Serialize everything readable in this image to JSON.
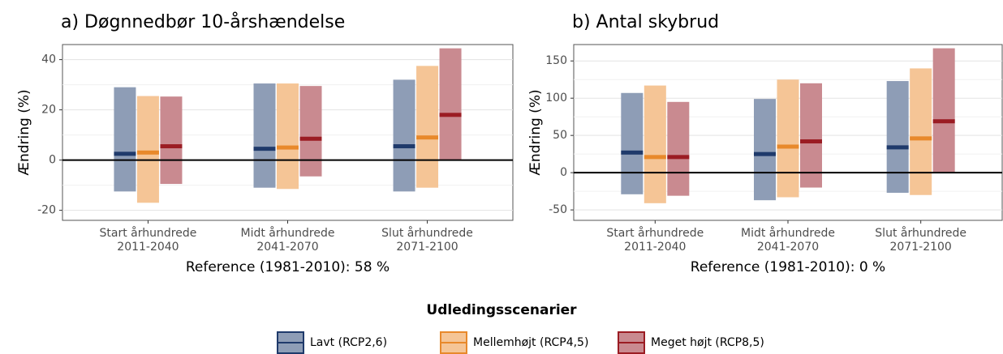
{
  "chart_data": [
    {
      "type": "range",
      "title": "a) Døgnnedbør 10-årshændelse",
      "y_label": "Ændring (%)",
      "x_label": "Reference (1981-2010): 58 %",
      "categories": [
        [
          "Start århundrede",
          "2011-2040"
        ],
        [
          "Midt århundrede",
          "2041-2070"
        ],
        [
          "Slut århundrede",
          "2071-2100"
        ]
      ],
      "ylim": [
        -24,
        46
      ],
      "yticks": [
        -20,
        0,
        20,
        40
      ],
      "hline": 0,
      "grid": true,
      "legend_title": "Udledingsscenarier",
      "series": [
        {
          "name": "Lavt (RCP2,6)",
          "color": "#8e9db6",
          "median_color": "#1f3a6b",
          "low": [
            -12.5,
            -11,
            -12.5
          ],
          "high": [
            29,
            30.5,
            32
          ],
          "median": [
            2.5,
            4.5,
            5.5
          ]
        },
        {
          "name": "Mellemhøjt (RCP4,5)",
          "color": "#f5c596",
          "median_color": "#e8892b",
          "low": [
            -17,
            -11.5,
            -11
          ],
          "high": [
            25.5,
            30.5,
            37.5
          ],
          "median": [
            3,
            5,
            9
          ]
        },
        {
          "name": "Meget højt (RCP8,5)",
          "color": "#c98a90",
          "median_color": "#9b1c23",
          "low": [
            -9.5,
            -6.5,
            0
          ],
          "high": [
            25.3,
            29.5,
            44.5
          ],
          "median": [
            5.5,
            8.5,
            18
          ]
        }
      ]
    },
    {
      "type": "range",
      "title": "b) Antal skybrud",
      "y_label": "Ændring (%)",
      "x_label": "Reference (1981-2010): 0 %",
      "categories": [
        [
          "Start århundrede",
          "2011-2040"
        ],
        [
          "Midt århundrede",
          "2041-2070"
        ],
        [
          "Slut århundrede",
          "2071-2100"
        ]
      ],
      "ylim": [
        -64,
        172
      ],
      "yticks": [
        -50,
        0,
        50,
        100,
        150
      ],
      "hline": 0,
      "grid": true,
      "series": [
        {
          "name": "Lavt (RCP2,6)",
          "color": "#8e9db6",
          "median_color": "#1f3a6b",
          "low": [
            -29,
            -37,
            -27
          ],
          "high": [
            107,
            99,
            123
          ],
          "median": [
            27,
            25,
            34
          ]
        },
        {
          "name": "Mellemhøjt (RCP4,5)",
          "color": "#f5c596",
          "median_color": "#e8892b",
          "low": [
            -41,
            -33,
            -30
          ],
          "high": [
            117,
            125,
            140
          ],
          "median": [
            21,
            35,
            46
          ]
        },
        {
          "name": "Meget højt (RCP8,5)",
          "color": "#c98a90",
          "median_color": "#9b1c23",
          "low": [
            -31,
            -20,
            0
          ],
          "high": [
            95,
            120,
            167
          ],
          "median": [
            21,
            42,
            69
          ]
        }
      ]
    }
  ]
}
